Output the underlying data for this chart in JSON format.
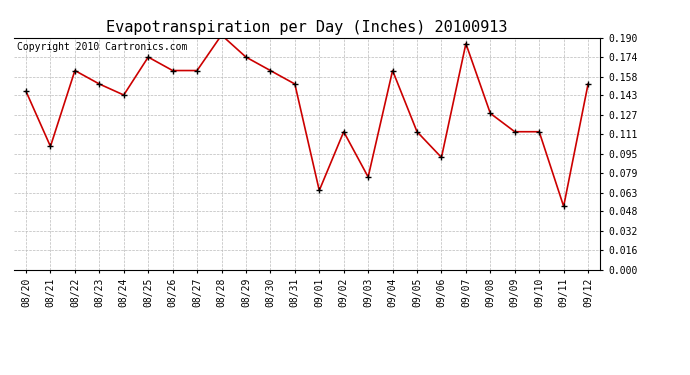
{
  "title": "Evapotranspiration per Day (Inches) 20100913",
  "copyright_text": "Copyright 2010 Cartronics.com",
  "x_labels": [
    "08/20",
    "08/21",
    "08/22",
    "08/23",
    "08/24",
    "08/25",
    "08/26",
    "08/27",
    "08/28",
    "08/29",
    "08/30",
    "08/31",
    "09/01",
    "09/02",
    "09/03",
    "09/04",
    "09/05",
    "09/06",
    "09/07",
    "09/08",
    "09/09",
    "09/10",
    "09/11",
    "09/12"
  ],
  "y_values": [
    0.146,
    0.101,
    0.163,
    0.152,
    0.143,
    0.174,
    0.163,
    0.163,
    0.192,
    0.174,
    0.163,
    0.152,
    0.065,
    0.113,
    0.076,
    0.163,
    0.113,
    0.092,
    0.185,
    0.128,
    0.113,
    0.113,
    0.052,
    0.152
  ],
  "line_color": "#cc0000",
  "marker": "+",
  "marker_size": 5,
  "marker_color": "#000000",
  "background_color": "#ffffff",
  "grid_color": "#bbbbbb",
  "y_min": 0.0,
  "y_max": 0.19,
  "y_ticks": [
    0.0,
    0.016,
    0.032,
    0.048,
    0.063,
    0.079,
    0.095,
    0.111,
    0.127,
    0.143,
    0.158,
    0.174,
    0.19
  ],
  "title_fontsize": 11,
  "copyright_fontsize": 7,
  "tick_fontsize": 7,
  "fig_width": 6.9,
  "fig_height": 3.75,
  "dpi": 100
}
